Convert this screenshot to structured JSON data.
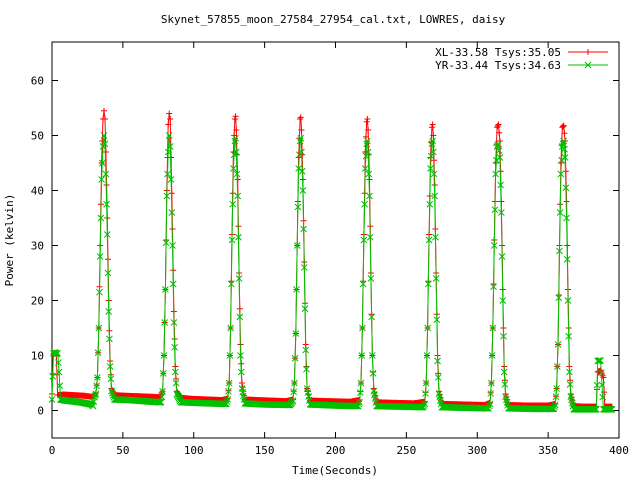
{
  "chart_data": {
    "type": "line",
    "title": "Skynet_57855_moon_27584_27954_cal.txt, LOWRES, daisy",
    "xlabel": "Time(Seconds)",
    "ylabel": "Power (kelvin)",
    "xlim": [
      0,
      400
    ],
    "ylim": [
      -5,
      67
    ],
    "xticks": [
      0,
      50,
      100,
      150,
      200,
      250,
      300,
      350,
      400
    ],
    "yticks": [
      0,
      10,
      20,
      30,
      40,
      50,
      60
    ],
    "legend_position": "top-right",
    "grid": false,
    "series": [
      {
        "name": "XL-33.58 Tsys:35.05",
        "color": "#ff0000",
        "marker": "+",
        "points": [
          [
            0,
            3
          ],
          [
            1,
            10.3
          ],
          [
            2,
            10.5
          ],
          [
            3,
            10.2
          ],
          [
            4,
            2.8
          ],
          [
            8,
            2.9
          ],
          [
            15,
            2.8
          ],
          [
            22,
            2.7
          ],
          [
            28,
            2.5
          ],
          [
            30,
            2.6
          ],
          [
            31,
            3.2
          ],
          [
            32,
            6
          ],
          [
            33,
            15
          ],
          [
            34,
            30
          ],
          [
            35,
            45
          ],
          [
            36,
            53
          ],
          [
            36.7,
            54.5
          ],
          [
            37.4,
            53
          ],
          [
            38,
            47
          ],
          [
            39,
            35
          ],
          [
            40,
            20
          ],
          [
            41,
            9
          ],
          [
            42,
            4
          ],
          [
            44,
            2.8
          ],
          [
            50,
            2.7
          ],
          [
            60,
            2.6
          ],
          [
            70,
            2.5
          ],
          [
            76,
            2.4
          ],
          [
            78,
            3.5
          ],
          [
            79,
            10
          ],
          [
            80,
            22
          ],
          [
            81,
            40
          ],
          [
            82,
            52
          ],
          [
            82.7,
            54
          ],
          [
            83.4,
            53
          ],
          [
            84,
            46
          ],
          [
            85,
            33
          ],
          [
            86,
            18
          ],
          [
            87,
            8
          ],
          [
            88,
            3.5
          ],
          [
            91,
            2.3
          ],
          [
            100,
            2.1
          ],
          [
            110,
            2
          ],
          [
            120,
            1.9
          ],
          [
            124,
            2.2
          ],
          [
            125,
            5
          ],
          [
            126,
            15
          ],
          [
            127,
            32
          ],
          [
            128,
            47
          ],
          [
            129,
            53
          ],
          [
            129.5,
            53.5
          ],
          [
            130,
            51
          ],
          [
            131,
            42
          ],
          [
            132,
            25
          ],
          [
            133,
            12
          ],
          [
            134,
            5
          ],
          [
            136,
            2
          ],
          [
            145,
            1.9
          ],
          [
            155,
            1.8
          ],
          [
            165,
            1.7
          ],
          [
            170,
            2
          ],
          [
            171,
            5
          ],
          [
            172,
            14
          ],
          [
            173,
            30
          ],
          [
            174,
            46
          ],
          [
            175,
            53
          ],
          [
            175.5,
            53.3
          ],
          [
            176,
            51
          ],
          [
            177,
            42
          ],
          [
            178,
            27
          ],
          [
            179,
            12
          ],
          [
            180,
            4
          ],
          [
            182,
            1.8
          ],
          [
            195,
            1.7
          ],
          [
            210,
            1.6
          ],
          [
            217,
            1.9
          ],
          [
            218,
            5
          ],
          [
            219,
            15
          ],
          [
            220,
            32
          ],
          [
            221,
            47
          ],
          [
            222,
            52.5
          ],
          [
            222.5,
            53
          ],
          [
            223,
            51
          ],
          [
            224,
            42
          ],
          [
            225,
            25
          ],
          [
            226,
            10
          ],
          [
            227,
            4
          ],
          [
            229,
            1.5
          ],
          [
            240,
            1.4
          ],
          [
            255,
            1.3
          ],
          [
            263,
            1.6
          ],
          [
            264,
            5
          ],
          [
            265,
            15
          ],
          [
            266,
            32
          ],
          [
            267,
            46
          ],
          [
            268,
            51.5
          ],
          [
            268.5,
            52
          ],
          [
            269,
            50
          ],
          [
            270,
            41
          ],
          [
            271,
            25
          ],
          [
            272,
            10
          ],
          [
            273,
            3.5
          ],
          [
            275,
            1.2
          ],
          [
            290,
            1.1
          ],
          [
            305,
            1
          ],
          [
            309,
            1.4
          ],
          [
            310,
            5
          ],
          [
            311,
            15
          ],
          [
            312,
            31
          ],
          [
            313,
            45
          ],
          [
            314,
            51.5
          ],
          [
            315,
            52
          ],
          [
            316,
            49
          ],
          [
            317,
            38
          ],
          [
            318,
            22
          ],
          [
            319,
            8
          ],
          [
            320,
            3
          ],
          [
            322,
            1
          ],
          [
            335,
            0.9
          ],
          [
            350,
            0.9
          ],
          [
            355,
            1.2
          ],
          [
            356,
            4
          ],
          [
            357,
            12
          ],
          [
            358,
            30
          ],
          [
            359,
            45
          ],
          [
            360,
            51.5
          ],
          [
            361,
            51.8
          ],
          [
            362,
            49
          ],
          [
            363,
            38
          ],
          [
            364,
            22
          ],
          [
            365,
            8
          ],
          [
            366,
            3
          ],
          [
            368,
            0.8
          ],
          [
            375,
            0.7
          ],
          [
            384,
            0.7
          ],
          [
            385,
            7
          ],
          [
            387,
            7.3
          ],
          [
            389,
            6
          ],
          [
            390,
            0.7
          ],
          [
            395,
            0.7
          ]
        ]
      },
      {
        "name": "YR-33.44 Tsys:34.63",
        "color": "#00c000",
        "marker": "x",
        "points": [
          [
            0,
            2
          ],
          [
            1,
            10.4
          ],
          [
            2,
            10.6
          ],
          [
            3,
            10.3
          ],
          [
            4,
            10.4
          ],
          [
            5,
            7
          ],
          [
            6,
            2
          ],
          [
            10,
            1.8
          ],
          [
            20,
            1.5
          ],
          [
            28,
            1.1
          ],
          [
            29,
            0.8
          ],
          [
            30,
            2.4
          ],
          [
            31,
            3
          ],
          [
            32,
            6
          ],
          [
            33,
            15
          ],
          [
            34,
            28
          ],
          [
            35,
            42
          ],
          [
            36,
            48
          ],
          [
            36.7,
            50
          ],
          [
            37.4,
            48.5
          ],
          [
            38,
            43
          ],
          [
            39,
            32
          ],
          [
            40,
            18
          ],
          [
            41,
            8
          ],
          [
            42,
            3.5
          ],
          [
            44,
            2
          ],
          [
            55,
            1.9
          ],
          [
            70,
            1.6
          ],
          [
            77,
            1.5
          ],
          [
            78,
            3.5
          ],
          [
            79,
            10
          ],
          [
            80,
            22
          ],
          [
            81,
            39
          ],
          [
            82,
            47
          ],
          [
            82.7,
            50
          ],
          [
            83.4,
            48
          ],
          [
            84,
            42
          ],
          [
            85,
            30
          ],
          [
            86,
            16
          ],
          [
            87,
            7
          ],
          [
            88,
            3
          ],
          [
            91,
            1.5
          ],
          [
            110,
            1.3
          ],
          [
            123,
            1.2
          ],
          [
            124,
            2
          ],
          [
            125,
            5
          ],
          [
            126,
            15
          ],
          [
            127,
            31
          ],
          [
            128,
            44
          ],
          [
            129,
            49
          ],
          [
            129.5,
            49.5
          ],
          [
            130,
            47
          ],
          [
            131,
            39
          ],
          [
            132,
            24
          ],
          [
            133,
            10
          ],
          [
            134,
            4
          ],
          [
            136,
            1.3
          ],
          [
            150,
            1.1
          ],
          [
            168,
            1
          ],
          [
            170,
            1.8
          ],
          [
            171,
            5
          ],
          [
            172,
            14
          ],
          [
            173,
            30
          ],
          [
            174,
            44
          ],
          [
            175,
            49
          ],
          [
            175.5,
            49.5
          ],
          [
            176,
            47
          ],
          [
            177,
            40
          ],
          [
            178,
            26
          ],
          [
            179,
            11
          ],
          [
            180,
            4
          ],
          [
            182,
            1.1
          ],
          [
            200,
            0.9
          ],
          [
            216,
            0.8
          ],
          [
            217,
            1.5
          ],
          [
            218,
            5
          ],
          [
            219,
            15
          ],
          [
            220,
            31
          ],
          [
            221,
            44
          ],
          [
            222,
            48.5
          ],
          [
            222.5,
            49
          ],
          [
            223,
            47
          ],
          [
            224,
            39
          ],
          [
            225,
            24
          ],
          [
            226,
            10
          ],
          [
            227,
            3.5
          ],
          [
            229,
            0.8
          ],
          [
            245,
            0.7
          ],
          [
            262,
            0.6
          ],
          [
            263,
            1.2
          ],
          [
            264,
            5
          ],
          [
            265,
            15
          ],
          [
            266,
            31
          ],
          [
            267,
            44
          ],
          [
            268,
            48.5
          ],
          [
            268.5,
            49
          ],
          [
            269,
            47
          ],
          [
            270,
            39
          ],
          [
            271,
            24
          ],
          [
            272,
            9
          ],
          [
            273,
            3
          ],
          [
            275,
            0.6
          ],
          [
            290,
            0.5
          ],
          [
            308,
            0.4
          ],
          [
            309,
            1.2
          ],
          [
            310,
            5
          ],
          [
            311,
            15
          ],
          [
            312,
            30
          ],
          [
            313,
            43
          ],
          [
            314,
            48
          ],
          [
            315,
            48.5
          ],
          [
            316,
            46
          ],
          [
            317,
            36
          ],
          [
            318,
            20
          ],
          [
            319,
            7
          ],
          [
            320,
            2.5
          ],
          [
            322,
            0.4
          ],
          [
            340,
            0.3
          ],
          [
            354,
            0.3
          ],
          [
            355,
            1
          ],
          [
            356,
            4
          ],
          [
            357,
            12
          ],
          [
            358,
            29
          ],
          [
            359,
            43
          ],
          [
            360,
            48
          ],
          [
            361,
            49
          ],
          [
            362,
            46
          ],
          [
            363,
            35
          ],
          [
            364,
            20
          ],
          [
            365,
            7
          ],
          [
            366,
            2.5
          ],
          [
            368,
            0.2
          ],
          [
            376,
            0.2
          ],
          [
            384,
            0.2
          ],
          [
            385,
            9
          ],
          [
            387,
            9.1
          ],
          [
            389,
            0.2
          ],
          [
            395,
            0.2
          ]
        ]
      }
    ]
  }
}
